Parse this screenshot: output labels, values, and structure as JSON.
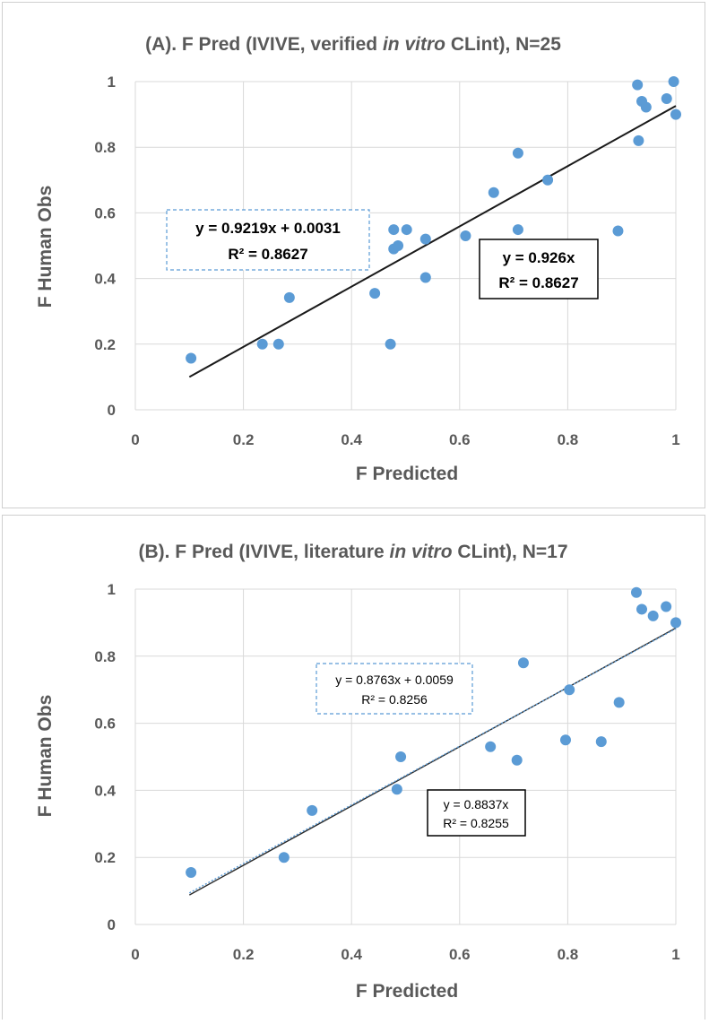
{
  "colors": {
    "points": "#5b9bd5",
    "grid": "#d9d9d9",
    "text": "#595959",
    "fit_line": "#1a1a1a",
    "dashed_box": "#5b9bd5"
  },
  "chart_data": [
    {
      "type": "scatter",
      "title_prefix": "(A).    F Pred (IVIVE, verified ",
      "title_italic": "in vitro",
      "title_suffix": " CLint), N=25",
      "xlabel": "F Predicted",
      "ylabel": "F Human Obs",
      "xlim": [
        0,
        1
      ],
      "ylim": [
        0,
        1
      ],
      "xticks": [
        "0",
        "0.2",
        "0.4",
        "0.6",
        "0.8",
        "1"
      ],
      "yticks": [
        "0",
        "0.2",
        "0.4",
        "0.6",
        "0.8",
        "1"
      ],
      "grid": true,
      "points": [
        [
          0.103,
          0.157
        ],
        [
          0.235,
          0.2
        ],
        [
          0.265,
          0.2
        ],
        [
          0.285,
          0.342
        ],
        [
          0.443,
          0.355
        ],
        [
          0.472,
          0.2
        ],
        [
          0.478,
          0.549
        ],
        [
          0.478,
          0.49
        ],
        [
          0.486,
          0.5
        ],
        [
          0.502,
          0.549
        ],
        [
          0.537,
          0.52
        ],
        [
          0.537,
          0.403
        ],
        [
          0.611,
          0.53
        ],
        [
          0.663,
          0.662
        ],
        [
          0.708,
          0.782
        ],
        [
          0.708,
          0.549
        ],
        [
          0.763,
          0.7
        ],
        [
          0.893,
          0.545
        ],
        [
          0.929,
          0.99
        ],
        [
          0.931,
          0.82
        ],
        [
          0.937,
          0.94
        ],
        [
          0.945,
          0.922
        ],
        [
          0.983,
          0.948
        ],
        [
          0.996,
          1.0
        ],
        [
          1.0,
          0.9
        ]
      ],
      "fit_line": {
        "x": [
          0.1,
          1.0
        ],
        "y": [
          0.1,
          0.926
        ]
      },
      "equation_dashed": {
        "line1": "y = 0.9219x + 0.0031",
        "line2": "R² = 0.8627"
      },
      "equation_solid": {
        "line1": "y = 0.926x",
        "line2": "R² = 0.8627"
      }
    },
    {
      "type": "scatter",
      "title_prefix": "(B). F Pred (IVIVE, literature ",
      "title_italic": "in vitro",
      "title_suffix": " CLint), N=17",
      "xlabel": "F Predicted",
      "ylabel": "F Human Obs",
      "xlim": [
        0,
        1
      ],
      "ylim": [
        0,
        1
      ],
      "xticks": [
        "0",
        "0.2",
        "0.4",
        "0.6",
        "0.8",
        "1"
      ],
      "yticks": [
        "0",
        "0.2",
        "0.4",
        "0.6",
        "0.8",
        "1"
      ],
      "grid": true,
      "points": [
        [
          0.103,
          0.155
        ],
        [
          0.275,
          0.2
        ],
        [
          0.327,
          0.34
        ],
        [
          0.484,
          0.403
        ],
        [
          0.491,
          0.5
        ],
        [
          0.657,
          0.53
        ],
        [
          0.706,
          0.49
        ],
        [
          0.718,
          0.78
        ],
        [
          0.796,
          0.55
        ],
        [
          0.803,
          0.7
        ],
        [
          0.862,
          0.545
        ],
        [
          0.895,
          0.662
        ],
        [
          0.927,
          0.99
        ],
        [
          0.937,
          0.94
        ],
        [
          0.958,
          0.92
        ],
        [
          0.982,
          0.948
        ],
        [
          1.0,
          0.9
        ]
      ],
      "fit_line_solid": {
        "x": [
          0.1,
          1.0
        ],
        "y": [
          0.088,
          0.884
        ]
      },
      "fit_line_dotted": {
        "x": [
          0.1,
          1.0
        ],
        "y": [
          0.094,
          0.882
        ]
      },
      "equation_dashed": {
        "line1": "y = 0.8763x + 0.0059",
        "line2": "R² = 0.8256"
      },
      "equation_solid": {
        "line1": "y = 0.8837x",
        "line2": "R² = 0.8255"
      }
    }
  ]
}
